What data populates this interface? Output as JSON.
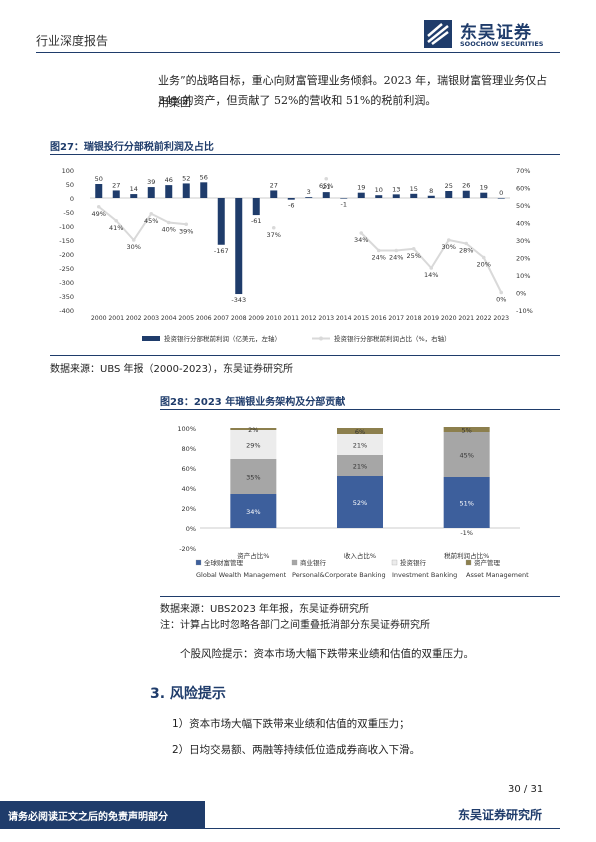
{
  "header": {
    "doc_type": "行业深度报告",
    "logo_cn": "东吴证券",
    "logo_en": "SOOCHOW SECURITIES"
  },
  "intro": {
    "line1": "业务”的战略目标，重心向财富管理业务倾斜。2023 年，瑞银财富管理业务仅占用集团",
    "line2": "34%的资产，但贡献了 52%的营收和 51%的税前利润。"
  },
  "fig27": {
    "title": "图27：瑞银投行分部税前利润及占比",
    "source": "数据来源：UBS 年报（2000-2023），东吴证券研究所",
    "chart_data": {
      "type": "bar",
      "categories": [
        "2000",
        "2001",
        "2002",
        "2003",
        "2004",
        "2005",
        "2006",
        "2007",
        "2008",
        "2009",
        "2010",
        "2011",
        "2012",
        "2013",
        "2014",
        "2015",
        "2016",
        "2017",
        "2018",
        "2019",
        "2020",
        "2021",
        "2022",
        "2023"
      ],
      "series": [
        {
          "name": "投资银行分部税前利润（亿美元，左轴）",
          "type": "bar",
          "axis": "left",
          "color": "#1f3c6b",
          "values": [
            50,
            27,
            14,
            39,
            46,
            52,
            56,
            -167,
            -343,
            -61,
            27,
            -6,
            3,
            21,
            -1,
            19,
            10,
            13,
            15,
            8,
            25,
            26,
            19,
            0
          ]
        },
        {
          "name": "投资银行分部税前利润占比（%，右轴）",
          "type": "line",
          "axis": "right",
          "color": "#d9d9d9",
          "values": [
            49,
            41,
            30,
            45,
            40,
            39,
            null,
            null,
            null,
            null,
            37,
            null,
            null,
            65,
            null,
            34,
            24,
            24,
            25,
            14,
            30,
            28,
            20,
            0
          ]
        }
      ],
      "point_labels": [
        "49%",
        "41%",
        "30%",
        "45%",
        "40%",
        "39%",
        "",
        "",
        "",
        "",
        "37%",
        "",
        "",
        "65%",
        "",
        "34%",
        "24%",
        "24%",
        "25%",
        "14%",
        "30%",
        "28%",
        "20%",
        "0%"
      ],
      "left_axis": {
        "ticks": [
          "100",
          "50",
          "0",
          "-50",
          "-100",
          "-150",
          "-200",
          "-250",
          "-300",
          "-350",
          "-400"
        ],
        "ylim": [
          -400,
          100
        ]
      },
      "right_axis": {
        "ticks": [
          "70%",
          "60%",
          "50%",
          "40%",
          "30%",
          "20%",
          "10%",
          "0%",
          "-10%"
        ],
        "ylim": [
          -10,
          70
        ]
      }
    }
  },
  "fig28": {
    "title": "图28：2023 年瑞银业务架构及分部贡献",
    "source": "数据来源：UBS2023 年年报，东吴证券研究所",
    "note": "注：计算占比时忽略各部门之间重叠抵消部分东吴证券研究所",
    "chart_data": {
      "type": "bar",
      "stacked": true,
      "categories": [
        "资产占比%",
        "收入占比%",
        "税前利润占比%"
      ],
      "series": [
        {
          "name": "全球财富管理 Global Wealth Management",
          "color": "#3d5f9c",
          "values": [
            34,
            52,
            51
          ]
        },
        {
          "name": "商业银行 Personal&Corporate Banking",
          "color": "#a6a6a6",
          "values": [
            35,
            21,
            45
          ]
        },
        {
          "name": "投资银行 Investment Banking",
          "color": "#ececec",
          "values": [
            29,
            21,
            -1
          ]
        },
        {
          "name": "资产管理 Asset Management",
          "color": "#8c7f4d",
          "values": [
            2,
            6,
            5
          ]
        }
      ],
      "value_labels": [
        [
          "34%",
          "52%",
          "51%"
        ],
        [
          "35%",
          "21%",
          "45%"
        ],
        [
          "29%",
          "21%",
          "-1%"
        ],
        [
          "2%",
          "6%",
          "5%"
        ]
      ],
      "legend": [
        {
          "cn": "全球财富管理",
          "en": "Global Wealth Management"
        },
        {
          "cn": "商业银行",
          "en": "Personal&Corporate Banking"
        },
        {
          "cn": "投资银行",
          "en": "Investment Banking"
        },
        {
          "cn": "资产管理",
          "en": "Asset Management"
        }
      ],
      "y_ticks": [
        "100%",
        "80%",
        "60%",
        "40%",
        "20%",
        "0%",
        "-20%"
      ],
      "ylim": [
        -20,
        100
      ]
    }
  },
  "stock_risk": "个股风险提示：资本市场大幅下跌带来业绩和估值的双重压力。",
  "section3": {
    "title": "3.  风险提示",
    "items": [
      "1）资本市场大幅下跌带来业绩和估值的双重压力；",
      "2）日均交易额、两融等持续低位造成券商收入下滑。"
    ]
  },
  "footer": {
    "disclaimer": "请务必阅读正文之后的免责声明部分",
    "institute": "东吴证券研究所",
    "page": "30 / 31"
  }
}
